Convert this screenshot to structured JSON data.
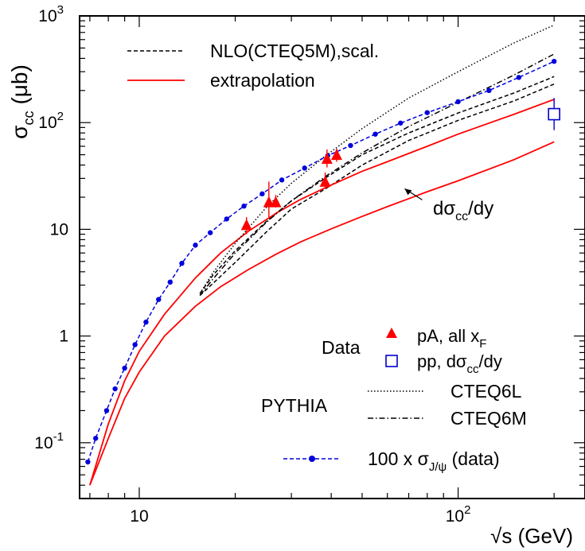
{
  "chart_data": {
    "type": "line",
    "x_scale": "log",
    "y_scale": "log",
    "xlim": [
      6.5,
      250
    ],
    "ylim": [
      0.03,
      1000
    ],
    "xlabel": "√s (GeV)",
    "ylabel_main": "σ",
    "ylabel_sub": "cc",
    "ylabel_unit": "(μb)",
    "x_ticks": [
      {
        "value": 10,
        "base": "10",
        "exp": ""
      },
      {
        "value": 100,
        "base": "10",
        "exp": "2"
      }
    ],
    "y_ticks": [
      {
        "value": 0.1,
        "base": "10",
        "exp": "-1"
      },
      {
        "value": 1,
        "base": "1",
        "exp": ""
      },
      {
        "value": 10,
        "base": "10",
        "exp": ""
      },
      {
        "value": 100,
        "base": "10",
        "exp": "2"
      },
      {
        "value": 1000,
        "base": "10",
        "exp": "3"
      }
    ],
    "series": [
      {
        "id": "nlo_upper",
        "style": "dashed",
        "color": "#000000",
        "x": [
          15.5,
          17,
          20,
          25,
          30,
          38.8,
          50,
          70,
          100,
          150,
          200
        ],
        "y": [
          2.5,
          3.7,
          6.3,
          11.8,
          18.5,
          31,
          50,
          80,
          123,
          190,
          270
        ]
      },
      {
        "id": "nlo_lower",
        "style": "dashed",
        "color": "#000000",
        "x": [
          15.5,
          17,
          20,
          25,
          30,
          38.8,
          50,
          70,
          100,
          150,
          200
        ],
        "y": [
          2.4,
          3.1,
          4.9,
          9.4,
          15.5,
          24.5,
          40,
          68,
          105,
          160,
          230
        ]
      },
      {
        "id": "extrapolation_total",
        "style": "solid",
        "color": "#ff0000",
        "x": [
          7,
          8,
          9,
          10,
          12,
          15,
          18,
          22,
          27,
          32,
          40,
          50,
          60,
          80,
          100,
          150,
          200
        ],
        "y": [
          0.04,
          0.15,
          0.38,
          0.72,
          1.6,
          3.5,
          6.0,
          9.6,
          14.3,
          19,
          26,
          35,
          43,
          60,
          78,
          120,
          165
        ]
      },
      {
        "id": "extrapolation_dsdy",
        "style": "solid",
        "color": "#ff0000",
        "x": [
          7,
          8,
          9,
          10,
          12,
          15,
          18,
          22,
          27,
          32,
          40,
          50,
          60,
          80,
          100,
          150,
          200
        ],
        "y": [
          0.04,
          0.11,
          0.26,
          0.46,
          1.0,
          1.9,
          2.9,
          4.2,
          5.9,
          7.6,
          10.1,
          13.2,
          16.3,
          22.5,
          28.5,
          45,
          66
        ]
      },
      {
        "id": "pythia_cteq6l",
        "style": "dotted",
        "color": "#000000",
        "x": [
          15.5,
          17,
          20,
          25,
          30,
          38.8,
          50,
          70,
          100,
          150,
          200
        ],
        "y": [
          2.5,
          3.9,
          7.4,
          16,
          27,
          50,
          88,
          170,
          300,
          560,
          820
        ]
      },
      {
        "id": "pythia_cteq6m",
        "style": "dashdot",
        "color": "#000000",
        "x": [
          15.5,
          17,
          20,
          25,
          30,
          38.8,
          50,
          70,
          100,
          150,
          200
        ],
        "y": [
          2.4,
          3.4,
          6.0,
          11.6,
          18.5,
          32,
          52,
          92,
          155,
          280,
          440
        ]
      },
      {
        "id": "jpsi_times_100",
        "style": "dashed",
        "color": "#0000dd",
        "markers": true,
        "x": [
          6.9,
          7.3,
          7.9,
          8.4,
          9.0,
          9.7,
          10.5,
          11.5,
          12.5,
          13.6,
          15.0,
          16.7,
          18.8,
          21.3,
          24.3,
          28.0,
          33.0,
          39.0,
          46.0,
          55.0,
          66.0,
          80.0,
          100.0,
          125.0,
          155.0,
          200.0
        ],
        "y": [
          0.066,
          0.11,
          0.2,
          0.32,
          0.5,
          0.83,
          1.35,
          2.2,
          3.2,
          4.8,
          7.1,
          9.3,
          12.5,
          16.5,
          21.5,
          29,
          37.5,
          49,
          61,
          78,
          99,
          124,
          157,
          200,
          265,
          375
        ]
      }
    ],
    "data_points": [
      {
        "set": "pA, all x_F",
        "marker": "triangle",
        "color": "#ff0000",
        "x": [
          21.7,
          25.5,
          26.8,
          38.3,
          38.8,
          41.6
        ],
        "y": [
          11,
          18,
          18,
          28,
          46,
          50
        ],
        "err_low": [
          9,
          13,
          16,
          24,
          38,
          43
        ],
        "err_high": [
          13,
          28,
          21,
          34,
          56,
          57
        ]
      },
      {
        "set": "pp, dσcc/dy",
        "marker": "open-square",
        "color": "#0000cc",
        "x": [
          200
        ],
        "y": [
          120
        ],
        "err_low": [
          85
        ],
        "err_high": [
          170
        ]
      }
    ],
    "annotation": {
      "main": "dσ",
      "sub": "cc",
      "after": "/dy",
      "arrow_x": 68,
      "arrow_y": 24
    },
    "legend_top": [
      {
        "label": "NLO(CTEQ5M),scal.",
        "style": "dashed",
        "color": "#000000"
      },
      {
        "label": "extrapolation",
        "style": "solid",
        "color": "#ff0000"
      }
    ],
    "legend_bottom": {
      "data_title": "Data",
      "pa_main": "pA, all x",
      "pa_sub": "F",
      "pp_main": "pp, dσ",
      "pp_sub": "cc",
      "pp_after": "/dy",
      "pythia_title": "PYTHIA",
      "cteq6l": "CTEQ6L",
      "cteq6m": "CTEQ6M",
      "jpsi_main": "100 x σ",
      "jpsi_sub": "J/ψ",
      "jpsi_after": " (data)"
    }
  }
}
